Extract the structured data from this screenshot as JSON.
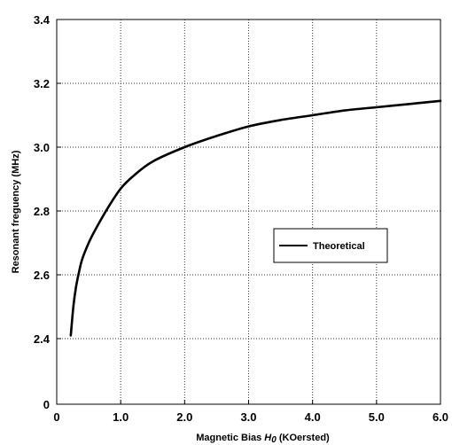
{
  "chart_data": {
    "type": "line",
    "title": "",
    "xlabel_pre": "Magnetic Bias ",
    "xlabel_symbol": "H",
    "xlabel_sub": "0",
    "xlabel_post": " (KOersted)",
    "ylabel": "Resonant freguency (MHz)",
    "x_ticks": [
      0,
      1,
      2,
      3,
      4,
      5,
      6
    ],
    "x_tick_labels": [
      "0",
      "1.0",
      "2.0",
      "3.0",
      "4.0",
      "5.0",
      "6.0"
    ],
    "y_ticks": [
      0,
      2.4,
      2.6,
      2.8,
      3.0,
      3.2,
      3.4
    ],
    "y_tick_labels": [
      "0",
      "2.4",
      "2.6",
      "2.8",
      "3.0",
      "3.2",
      "3.4"
    ],
    "xlim": [
      0,
      6
    ],
    "ylim_display": [
      2.4,
      3.4
    ],
    "y_axis_break": true,
    "grid": true,
    "legend_position": "center-right",
    "series": [
      {
        "name": "Theoretical",
        "color": "#000000",
        "x": [
          0.22,
          0.26,
          0.3,
          0.35,
          0.4,
          0.5,
          0.6,
          0.8,
          1.0,
          1.2,
          1.5,
          2.0,
          2.5,
          3.0,
          3.5,
          4.0,
          4.5,
          5.0,
          5.5,
          6.0
        ],
        "y": [
          2.41,
          2.5,
          2.56,
          2.61,
          2.65,
          2.7,
          2.74,
          2.81,
          2.87,
          2.91,
          2.955,
          3.0,
          3.035,
          3.065,
          3.085,
          3.1,
          3.115,
          3.125,
          3.135,
          3.145
        ]
      }
    ]
  }
}
